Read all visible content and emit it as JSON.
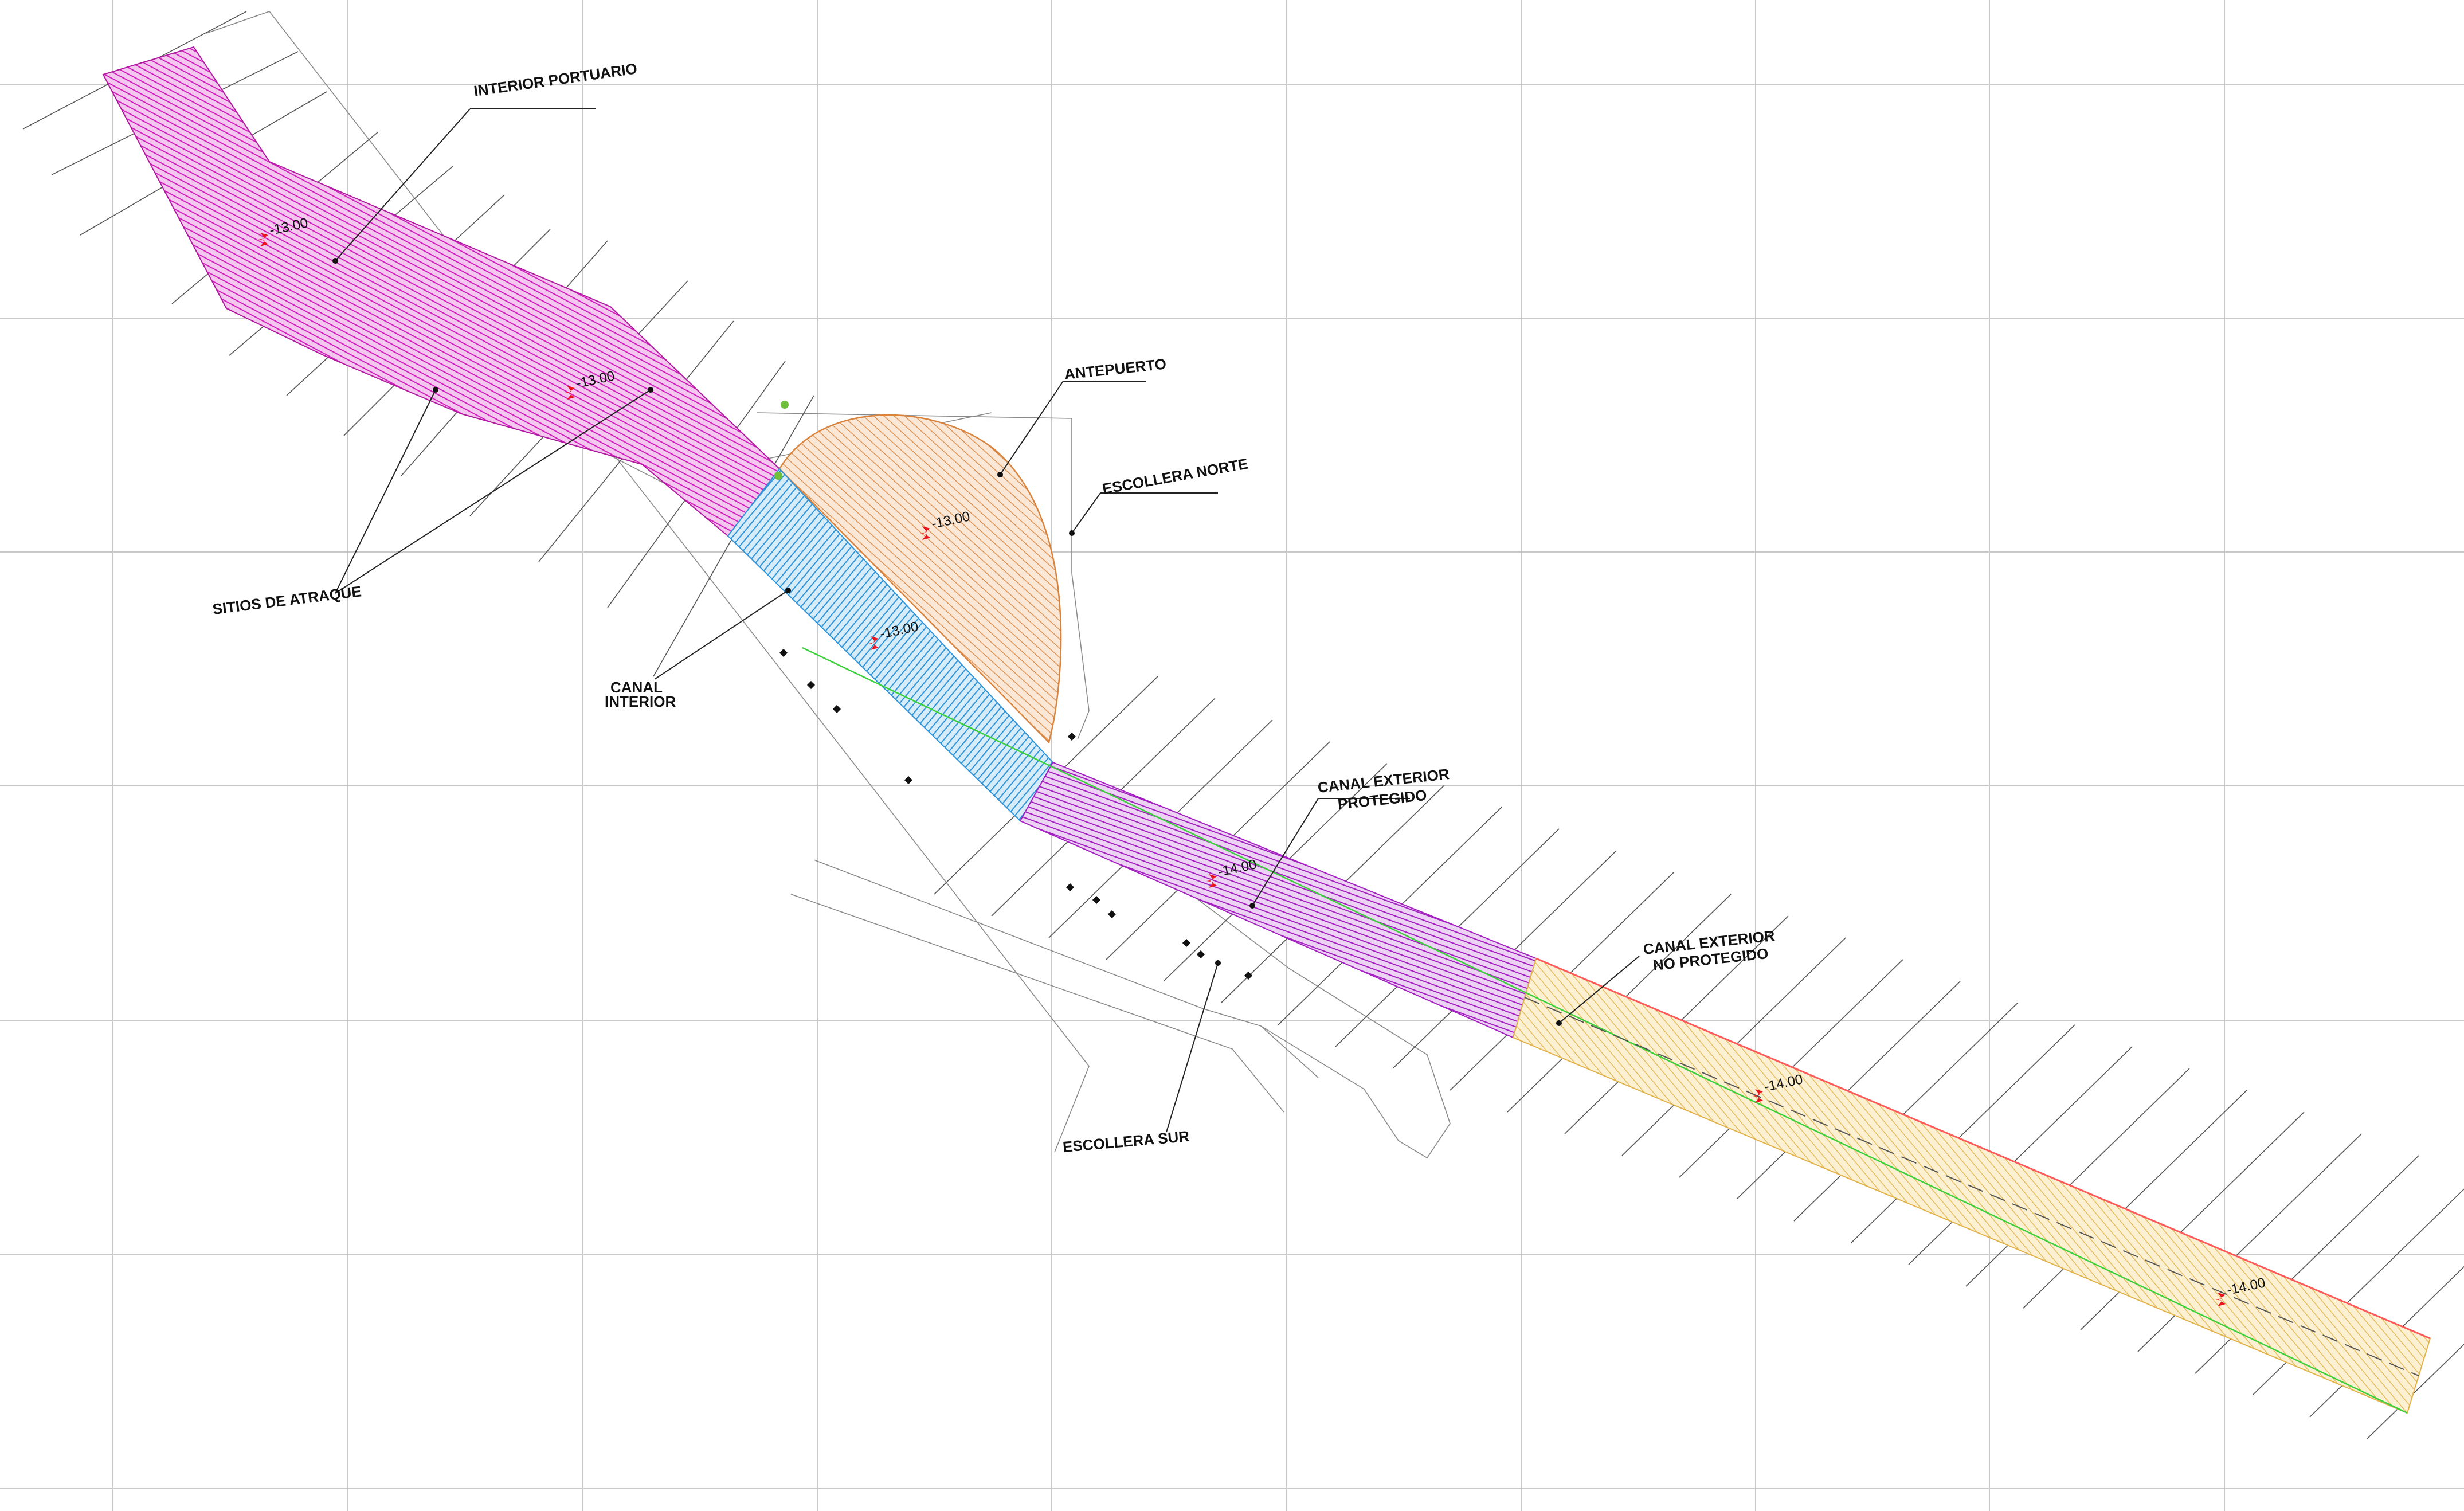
{
  "labels": {
    "interior_portuario": "INTERIOR PORTUARIO",
    "sitios_de_atraque": "SITIOS DE ATRAQUE",
    "antepuerto": "ANTEPUERTO",
    "escollera_norte": "ESCOLLERA NORTE",
    "canal_interior_1": "CANAL",
    "canal_interior_2": "INTERIOR",
    "canal_exterior_protegido_1": "CANAL EXTERIOR",
    "canal_exterior_protegido_2": "PROTEGIDO",
    "canal_exterior_no_protegido_1": "CANAL EXTERIOR",
    "canal_exterior_no_protegido_2": "NO PROTEGIDO",
    "escollera_sur": "ESCOLLERA SUR"
  },
  "depths": {
    "interior_1": "-13.00",
    "interior_2": "-13.00",
    "antepuerto": "-13.00",
    "canal_interior": "-13.00",
    "canal_exterior_protegido": "-14.00",
    "canal_exterior_no_protegido_1": "-14.00",
    "canal_exterior_no_protegido_2": "-14.00"
  },
  "colors": {
    "interior": "#d01fbd",
    "antepuerto": "#e0843a",
    "canal_interior": "#2f93d8",
    "canal_exterior_protegido": "#a31fc0",
    "canal_exterior_no_protegido": "#e2b24a",
    "depth_marker": "#e8141c",
    "north_edge": "#ff5a5a",
    "south_edge": "#3cd13c"
  }
}
